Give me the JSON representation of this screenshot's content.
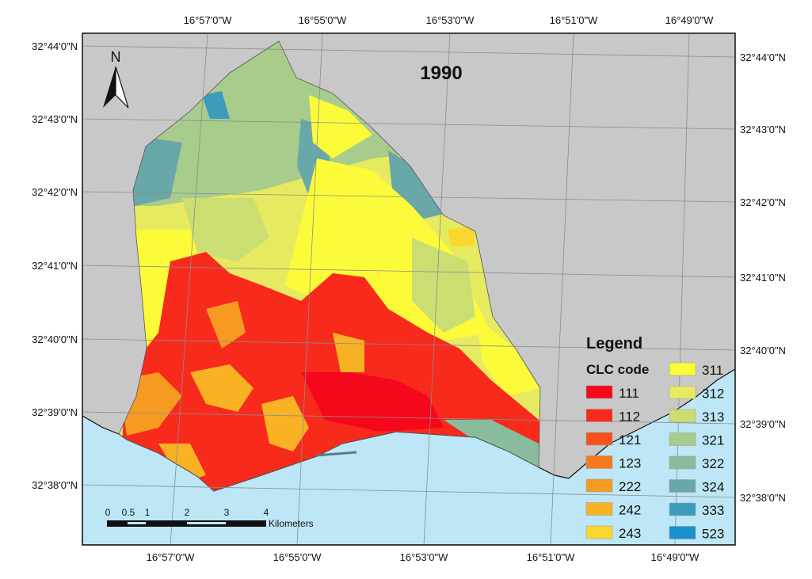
{
  "map": {
    "year": "1990",
    "north_label": "N",
    "colors": {
      "land": "#c8c8c8",
      "sea": "#bde7f7",
      "grid": "#8c8c8c"
    },
    "top_ticks": [
      "16°57'0\"W",
      "16°55'0\"W",
      "16°53'0\"W",
      "16°51'0\"W",
      "16°49'0\"W"
    ],
    "bottom_ticks": [
      "16°57'0\"W",
      "16°55'0\"W",
      "16°53'0\"W",
      "16°51'0\"W",
      "16°49'0\"W"
    ],
    "left_ticks": [
      "32°44'0\"N",
      "32°43'0\"N",
      "32°42'0\"N",
      "32°41'0\"N",
      "32°40'0\"N",
      "32°39'0\"N",
      "32°38'0\"N"
    ],
    "right_ticks": [
      "32°44'0\"N",
      "32°43'0\"N",
      "32°42'0\"N",
      "32°41'0\"N",
      "32°40'0\"N",
      "32°39'0\"N",
      "32°38'0\"N"
    ],
    "scale_bar": {
      "labels": [
        "0",
        "0.5",
        "1",
        "2",
        "3",
        "4"
      ],
      "unit": "Kilometers"
    },
    "legend": {
      "title": "Legend",
      "subtitle": "CLC code",
      "items": [
        {
          "code": "111",
          "color": "#f5071c"
        },
        {
          "code": "112",
          "color": "#f72a1c"
        },
        {
          "code": "121",
          "color": "#f7521c"
        },
        {
          "code": "123",
          "color": "#f77a1a"
        },
        {
          "code": "222",
          "color": "#f79a22"
        },
        {
          "code": "242",
          "color": "#f9b224"
        },
        {
          "code": "243",
          "color": "#fbd62e"
        },
        {
          "code": "311",
          "color": "#fbfb3a"
        },
        {
          "code": "312",
          "color": "#e6ea60"
        },
        {
          "code": "313",
          "color": "#cade72"
        },
        {
          "code": "321",
          "color": "#a8cc8c"
        },
        {
          "code": "322",
          "color": "#88bc9c"
        },
        {
          "code": "324",
          "color": "#68a8a8"
        },
        {
          "code": "333",
          "color": "#3c9cbc"
        },
        {
          "code": "523",
          "color": "#1890cc"
        }
      ]
    }
  }
}
